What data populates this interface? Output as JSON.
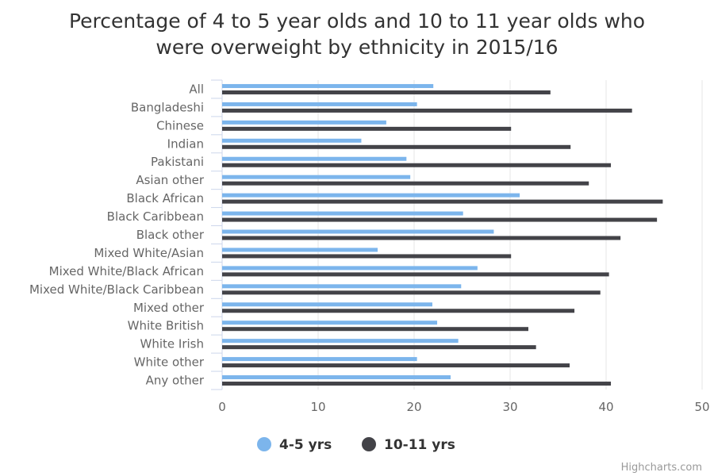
{
  "chart_data": {
    "type": "bar",
    "orientation": "horizontal",
    "title": [
      "Percentage of 4 to 5 year olds and 10 to 11 year olds who",
      "were overweight by ethnicity in 2015/16"
    ],
    "categories": [
      "All",
      "Bangladeshi",
      "Chinese",
      "Indian",
      "Pakistani",
      "Asian other",
      "Black African",
      "Black Caribbean",
      "Black other",
      "Mixed White/Asian",
      "Mixed White/Black African",
      "Mixed White/Black Caribbean",
      "Mixed other",
      "White British",
      "White Irish",
      "White other",
      "Any other"
    ],
    "series": [
      {
        "name": "4-5 yrs",
        "color": "#7cb5ec",
        "values": [
          22.0,
          20.3,
          17.1,
          14.5,
          19.2,
          19.6,
          31.0,
          25.1,
          28.3,
          16.2,
          26.6,
          24.9,
          21.9,
          22.4,
          24.6,
          20.3,
          23.8
        ]
      },
      {
        "name": "10-11 yrs",
        "color": "#434348",
        "values": [
          34.2,
          42.7,
          30.1,
          36.3,
          40.5,
          38.2,
          45.9,
          45.3,
          41.5,
          30.1,
          40.3,
          39.4,
          36.7,
          31.9,
          32.7,
          36.2,
          40.5
        ]
      }
    ],
    "xlim": [
      0,
      50
    ],
    "ticks": [
      "0",
      "10",
      "20",
      "30",
      "40",
      "50"
    ],
    "grid": true,
    "legend": "bottom-center"
  },
  "credits": "Highcharts.com"
}
